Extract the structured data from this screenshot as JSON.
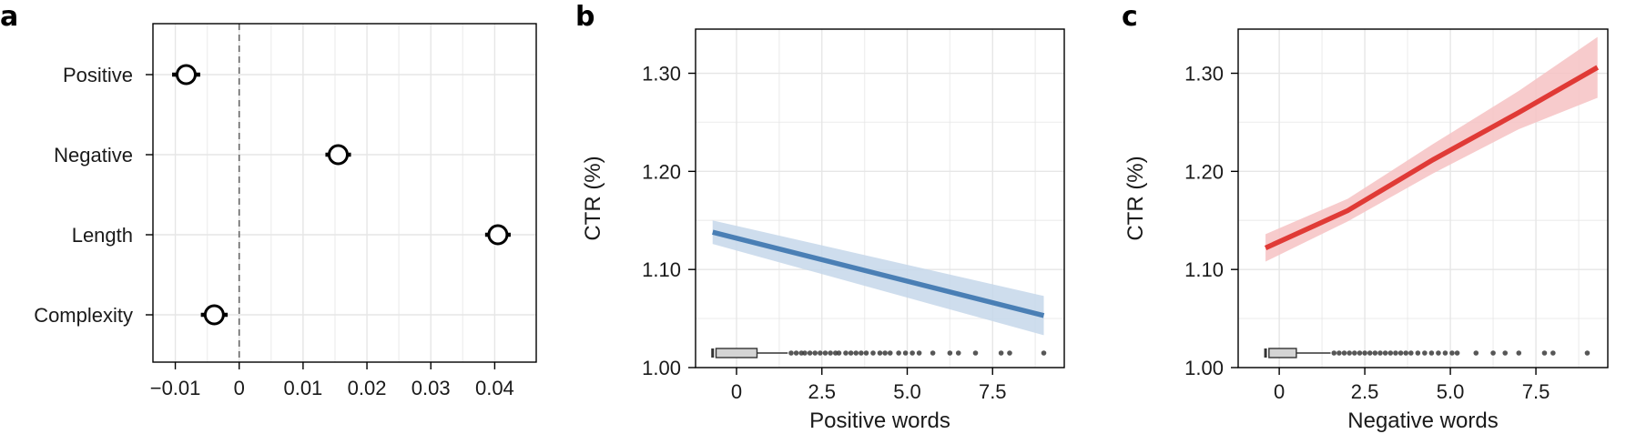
{
  "chart_data": [
    {
      "panel": "a",
      "type": "scatter",
      "title": "",
      "xlabel": "",
      "ylabel": "",
      "categories": [
        "Positive",
        "Negative",
        "Length",
        "Complexity"
      ],
      "estimates": [
        {
          "label": "Positive",
          "value": -0.0083,
          "ci": [
            -0.0105,
            -0.0061
          ]
        },
        {
          "label": "Negative",
          "value": 0.0155,
          "ci": [
            0.0135,
            0.0175
          ]
        },
        {
          "label": "Length",
          "value": 0.0405,
          "ci": [
            0.0385,
            0.0425
          ]
        },
        {
          "label": "Complexity",
          "value": -0.0039,
          "ci": [
            -0.006,
            -0.0018
          ]
        }
      ],
      "xlim": [
        -0.0135,
        0.0465
      ],
      "xticks": [
        -0.01,
        0,
        0.01,
        0.02,
        0.03,
        0.04
      ],
      "xtick_labels": [
        "−0.01",
        "0",
        "0.01",
        "0.02",
        "0.03",
        "0.04"
      ],
      "reference_line": {
        "x": 0,
        "style": "dashed"
      },
      "grid": true
    },
    {
      "panel": "b",
      "type": "line",
      "title": "",
      "xlabel": "Positive words",
      "ylabel": "CTR (%)",
      "xlim": [
        -1.2,
        9.6
      ],
      "ylim": [
        1.0,
        1.345
      ],
      "xticks": [
        0,
        2.5,
        5.0,
        7.5
      ],
      "xtick_labels": [
        "0",
        "2.5",
        "5.0",
        "7.5"
      ],
      "yticks": [
        1.0,
        1.1,
        1.2,
        1.3
      ],
      "ytick_labels": [
        "1.00",
        "1.10",
        "1.20",
        "1.30"
      ],
      "line_color": "#4a7fb5",
      "band_color": "#c5d7ea",
      "series": [
        {
          "x": [
            -0.7,
            9.0
          ],
          "y": [
            1.138,
            1.053
          ],
          "lower": [
            1.126,
            1.033
          ],
          "upper": [
            1.15,
            1.073
          ]
        }
      ],
      "boxplot": {
        "whisker_low": -0.7,
        "q1": -0.6,
        "median": -0.6,
        "q3": 0.6,
        "whisker_high": 1.5,
        "outliers": [
          1.6,
          1.75,
          1.9,
          2.0,
          2.15,
          2.3,
          2.45,
          2.6,
          2.75,
          2.9,
          3.0,
          3.2,
          3.35,
          3.5,
          3.65,
          3.8,
          4.0,
          4.2,
          4.35,
          4.5,
          4.75,
          4.95,
          5.15,
          5.35,
          5.75,
          6.25,
          6.5,
          7.0,
          7.75,
          8.0,
          9.0
        ]
      },
      "grid": true
    },
    {
      "panel": "c",
      "type": "line",
      "title": "",
      "xlabel": "Negative words",
      "ylabel": "CTR (%)",
      "xlim": [
        -1.2,
        9.6
      ],
      "ylim": [
        1.0,
        1.345
      ],
      "xticks": [
        0,
        2.5,
        5.0,
        7.5
      ],
      "xtick_labels": [
        "0",
        "2.5",
        "5.0",
        "7.5"
      ],
      "yticks": [
        1.0,
        1.1,
        1.2,
        1.3
      ],
      "ytick_labels": [
        "1.00",
        "1.10",
        "1.20",
        "1.30"
      ],
      "line_color": "#e03a36",
      "band_color": "#f6c2c3",
      "series": [
        {
          "x": [
            -0.4,
            2.0,
            4.5,
            7.0,
            9.3
          ],
          "y": [
            1.122,
            1.16,
            1.212,
            1.26,
            1.306
          ],
          "lower": [
            1.108,
            1.149,
            1.198,
            1.243,
            1.275
          ],
          "upper": [
            1.136,
            1.172,
            1.228,
            1.282,
            1.337
          ]
        }
      ],
      "boxplot": {
        "whisker_low": -0.4,
        "q1": -0.3,
        "median": -0.3,
        "q3": 0.5,
        "whisker_high": 1.5,
        "outliers": [
          1.6,
          1.75,
          1.9,
          2.05,
          2.2,
          2.35,
          2.5,
          2.65,
          2.8,
          2.95,
          3.1,
          3.25,
          3.4,
          3.55,
          3.7,
          3.85,
          4.05,
          4.25,
          4.45,
          4.65,
          4.85,
          5.05,
          5.2,
          5.75,
          6.25,
          6.6,
          7.0,
          7.75,
          8.0,
          9.0
        ]
      },
      "grid": true
    }
  ]
}
